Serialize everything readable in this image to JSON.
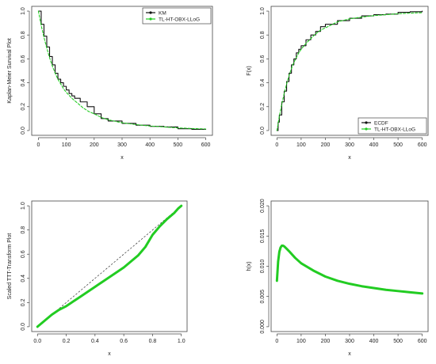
{
  "colors": {
    "empirical": "#111111",
    "model": "#22cc22",
    "reference": "#333333",
    "axis": "#444444"
  },
  "chart_data": [
    {
      "id": "km",
      "type": "line",
      "xlabel": "x",
      "ylabel": "Kaplan-Meier Survival Plot",
      "xlim": [
        0,
        600
      ],
      "ylim": [
        0,
        1
      ],
      "xticks": [
        0,
        100,
        200,
        300,
        400,
        500,
        600
      ],
      "yticks": [
        0.0,
        0.2,
        0.4,
        0.6,
        0.8,
        1.0
      ],
      "legend": {
        "position": "top-right",
        "entries": [
          "KM",
          "TL-HT-OBX-LLoG"
        ]
      },
      "series": [
        {
          "name": "KM",
          "style": "step",
          "color": "#111111",
          "x": [
            0,
            10,
            20,
            30,
            40,
            50,
            60,
            70,
            80,
            90,
            100,
            110,
            120,
            130,
            150,
            175,
            200,
            225,
            250,
            300,
            350,
            400,
            450,
            500,
            550,
            600
          ],
          "y": [
            1.0,
            0.89,
            0.79,
            0.7,
            0.62,
            0.55,
            0.48,
            0.43,
            0.4,
            0.37,
            0.34,
            0.31,
            0.29,
            0.27,
            0.24,
            0.2,
            0.14,
            0.1,
            0.08,
            0.06,
            0.045,
            0.035,
            0.03,
            0.015,
            0.01,
            0.01
          ]
        },
        {
          "name": "TL-HT-OBX-LLoG",
          "style": "dashed",
          "color": "#22cc22",
          "x": [
            0,
            10,
            20,
            30,
            40,
            50,
            60,
            70,
            80,
            90,
            100,
            120,
            140,
            160,
            180,
            200,
            225,
            250,
            300,
            350,
            400,
            450,
            500,
            550,
            600
          ],
          "y": [
            1.0,
            0.88,
            0.78,
            0.69,
            0.61,
            0.54,
            0.48,
            0.43,
            0.39,
            0.35,
            0.32,
            0.27,
            0.23,
            0.19,
            0.16,
            0.14,
            0.11,
            0.09,
            0.065,
            0.05,
            0.038,
            0.03,
            0.022,
            0.017,
            0.013
          ]
        }
      ]
    },
    {
      "id": "ecdf",
      "type": "line",
      "xlabel": "x",
      "ylabel": "F(x)",
      "xlim": [
        0,
        600
      ],
      "ylim": [
        0,
        1
      ],
      "xticks": [
        0,
        100,
        200,
        300,
        400,
        500,
        600
      ],
      "yticks": [
        0.0,
        0.2,
        0.4,
        0.6,
        0.8,
        1.0
      ],
      "legend": {
        "position": "bottom-right",
        "entries": [
          "ECDF",
          "TL-HT-OBX-LLoG"
        ]
      },
      "series": [
        {
          "name": "ECDF",
          "style": "step",
          "color": "#111111",
          "x": [
            0,
            5,
            10,
            20,
            30,
            40,
            50,
            60,
            70,
            80,
            90,
            100,
            120,
            140,
            160,
            180,
            200,
            250,
            300,
            350,
            400,
            450,
            500,
            550,
            600
          ],
          "y": [
            0.0,
            0.07,
            0.13,
            0.24,
            0.33,
            0.41,
            0.48,
            0.55,
            0.6,
            0.65,
            0.68,
            0.71,
            0.76,
            0.8,
            0.83,
            0.87,
            0.89,
            0.92,
            0.94,
            0.96,
            0.97,
            0.975,
            0.99,
            0.995,
            1.0
          ]
        },
        {
          "name": "TL-HT-OBX-LLoG",
          "style": "dashed",
          "color": "#22cc22",
          "x": [
            0,
            10,
            20,
            30,
            40,
            50,
            60,
            70,
            80,
            90,
            100,
            120,
            140,
            160,
            180,
            200,
            250,
            300,
            350,
            400,
            450,
            500,
            550,
            600
          ],
          "y": [
            0.0,
            0.12,
            0.22,
            0.31,
            0.39,
            0.46,
            0.52,
            0.57,
            0.61,
            0.65,
            0.68,
            0.73,
            0.77,
            0.81,
            0.84,
            0.86,
            0.91,
            0.935,
            0.95,
            0.962,
            0.97,
            0.978,
            0.983,
            0.987
          ]
        }
      ]
    },
    {
      "id": "ttt",
      "type": "line",
      "xlabel": "x",
      "ylabel": "Scaled TTT-Transform Plot",
      "xlim": [
        0,
        1
      ],
      "ylim": [
        0,
        1
      ],
      "xticks": [
        0.0,
        0.2,
        0.4,
        0.6,
        0.8,
        1.0
      ],
      "yticks": [
        0.0,
        0.2,
        0.4,
        0.6,
        0.8,
        1.0
      ],
      "reference_line": {
        "x": [
          0,
          1
        ],
        "y": [
          0,
          1
        ]
      },
      "series": [
        {
          "name": "",
          "style": "thick",
          "color": "#22cc22",
          "x": [
            0.0,
            0.05,
            0.1,
            0.15,
            0.2,
            0.25,
            0.3,
            0.35,
            0.4,
            0.45,
            0.5,
            0.55,
            0.6,
            0.65,
            0.7,
            0.75,
            0.8,
            0.85,
            0.9,
            0.95,
            0.98,
            1.0
          ],
          "y": [
            0.0,
            0.05,
            0.1,
            0.14,
            0.17,
            0.21,
            0.25,
            0.29,
            0.33,
            0.37,
            0.41,
            0.45,
            0.49,
            0.54,
            0.59,
            0.66,
            0.76,
            0.83,
            0.89,
            0.94,
            0.98,
            1.0
          ]
        }
      ]
    },
    {
      "id": "hazard",
      "type": "line",
      "xlabel": "x",
      "ylabel": "h(x)",
      "xlim": [
        0,
        600
      ],
      "ylim": [
        0,
        0.02
      ],
      "xticks": [
        0,
        100,
        200,
        300,
        400,
        500,
        600
      ],
      "yticks": [
        0.0,
        0.005,
        0.01,
        0.015,
        0.02
      ],
      "ytick_labels": [
        "0.000",
        "0.005",
        "0.010",
        "0.015",
        "0.020"
      ],
      "series": [
        {
          "name": "",
          "style": "thick",
          "color": "#22cc22",
          "x": [
            0,
            5,
            10,
            15,
            20,
            25,
            30,
            40,
            50,
            75,
            100,
            150,
            200,
            250,
            300,
            350,
            400,
            450,
            500,
            550,
            600
          ],
          "y": [
            0.0076,
            0.0108,
            0.0124,
            0.0131,
            0.0134,
            0.0134,
            0.0133,
            0.0129,
            0.0125,
            0.0114,
            0.0105,
            0.0093,
            0.0083,
            0.0076,
            0.0071,
            0.0067,
            0.0064,
            0.0061,
            0.0059,
            0.0057,
            0.0055
          ]
        }
      ]
    }
  ]
}
